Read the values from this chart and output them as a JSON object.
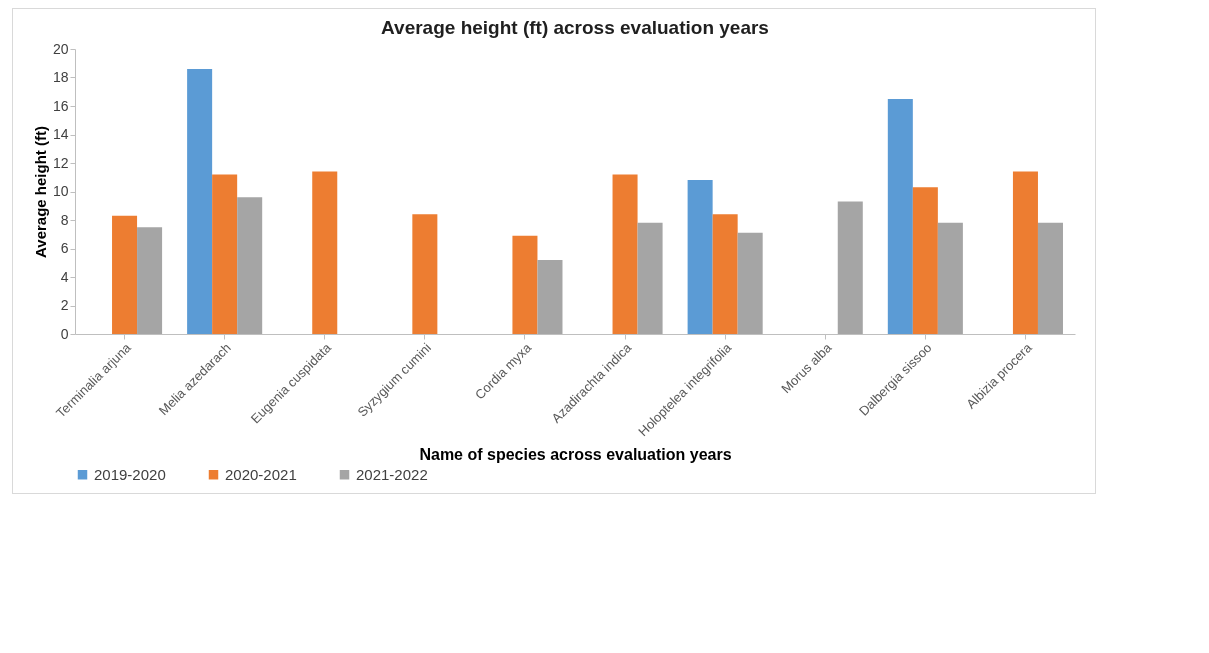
{
  "chart_data": {
    "type": "bar",
    "title": "Average height (ft) across evaluation years",
    "xlabel": "Name of species across evaluation years",
    "ylabel": "Average  height (ft)",
    "categories": [
      "Terminalia arjuna",
      "Melia azedarach",
      "Eugenia cuspidata",
      "Syzygium cumini",
      "Cordia myxa",
      "Azadirachta indica",
      "Holoptelea integrifolia",
      "Morus alba",
      "Dalbergia sissoo",
      "Albizia procera"
    ],
    "series": [
      {
        "name": "2019-2020",
        "color": "#5b9bd5",
        "values": [
          null,
          18.6,
          null,
          null,
          null,
          null,
          10.8,
          null,
          16.5,
          null
        ]
      },
      {
        "name": "2020-2021",
        "color": "#ed7d31",
        "values": [
          8.3,
          11.2,
          11.4,
          8.4,
          6.9,
          11.2,
          8.4,
          null,
          10.3,
          11.4
        ]
      },
      {
        "name": "2021-2022",
        "color": "#a5a5a5",
        "values": [
          7.5,
          9.6,
          null,
          null,
          5.2,
          7.8,
          7.1,
          9.3,
          7.8,
          7.8
        ]
      }
    ],
    "ylim": [
      0,
      20
    ],
    "yticks": [
      0,
      2,
      4,
      6,
      8,
      10,
      12,
      14,
      16,
      18,
      20
    ],
    "grid": false,
    "legend": "bottom"
  }
}
